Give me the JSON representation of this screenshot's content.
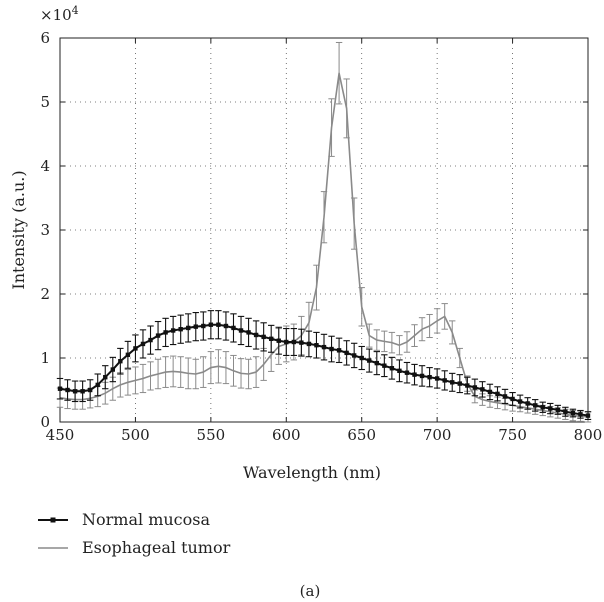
{
  "chart_data": {
    "type": "line",
    "title": "",
    "xlabel": "Wavelength (nm)",
    "ylabel": "Intensity (a.u.)",
    "y_multiplier": "×10",
    "y_multiplier_exp": "4",
    "xlim": [
      450,
      800
    ],
    "ylim": [
      0,
      6
    ],
    "xticks": [
      450,
      500,
      550,
      600,
      650,
      700,
      750,
      800
    ],
    "yticks": [
      0,
      1,
      2,
      3,
      4,
      5,
      6
    ],
    "grid": "dotted",
    "legend_position": "below",
    "caption": "(a)",
    "series": [
      {
        "name": "Normal mucosa",
        "color": "#111111",
        "marker": "square",
        "x": [
          450,
          455,
          460,
          465,
          470,
          475,
          480,
          485,
          490,
          495,
          500,
          505,
          510,
          515,
          520,
          525,
          530,
          535,
          540,
          545,
          550,
          555,
          560,
          565,
          570,
          575,
          580,
          585,
          590,
          595,
          600,
          605,
          610,
          615,
          620,
          625,
          630,
          635,
          640,
          645,
          650,
          655,
          660,
          665,
          670,
          675,
          680,
          685,
          690,
          695,
          700,
          705,
          710,
          715,
          720,
          725,
          730,
          735,
          740,
          745,
          750,
          755,
          760,
          765,
          770,
          775,
          780,
          785,
          790,
          795,
          800
        ],
        "values": [
          0.52,
          0.5,
          0.48,
          0.48,
          0.5,
          0.58,
          0.7,
          0.82,
          0.95,
          1.05,
          1.15,
          1.22,
          1.28,
          1.35,
          1.4,
          1.43,
          1.45,
          1.47,
          1.49,
          1.5,
          1.52,
          1.52,
          1.5,
          1.47,
          1.43,
          1.4,
          1.36,
          1.33,
          1.3,
          1.27,
          1.25,
          1.25,
          1.24,
          1.22,
          1.2,
          1.17,
          1.14,
          1.12,
          1.08,
          1.04,
          1.0,
          0.96,
          0.92,
          0.88,
          0.84,
          0.8,
          0.77,
          0.74,
          0.72,
          0.7,
          0.68,
          0.65,
          0.62,
          0.6,
          0.57,
          0.54,
          0.51,
          0.47,
          0.44,
          0.4,
          0.36,
          0.32,
          0.29,
          0.26,
          0.23,
          0.21,
          0.19,
          0.16,
          0.14,
          0.12,
          0.1
        ],
        "error": [
          0.16,
          0.16,
          0.16,
          0.16,
          0.16,
          0.17,
          0.18,
          0.19,
          0.2,
          0.21,
          0.21,
          0.22,
          0.22,
          0.22,
          0.22,
          0.22,
          0.22,
          0.22,
          0.22,
          0.22,
          0.22,
          0.22,
          0.22,
          0.22,
          0.22,
          0.22,
          0.22,
          0.22,
          0.21,
          0.21,
          0.21,
          0.21,
          0.21,
          0.2,
          0.2,
          0.2,
          0.2,
          0.19,
          0.19,
          0.19,
          0.18,
          0.18,
          0.18,
          0.17,
          0.17,
          0.17,
          0.16,
          0.16,
          0.16,
          0.15,
          0.15,
          0.15,
          0.14,
          0.14,
          0.13,
          0.13,
          0.12,
          0.12,
          0.11,
          0.11,
          0.1,
          0.1,
          0.09,
          0.09,
          0.08,
          0.08,
          0.07,
          0.07,
          0.06,
          0.06,
          0.06
        ]
      },
      {
        "name": "Esophageal tumor",
        "color": "#8a8a8a",
        "marker": "none",
        "x": [
          450,
          455,
          460,
          465,
          470,
          475,
          480,
          485,
          490,
          495,
          500,
          505,
          510,
          515,
          520,
          525,
          530,
          535,
          540,
          545,
          550,
          555,
          560,
          565,
          570,
          575,
          580,
          585,
          590,
          595,
          600,
          605,
          610,
          615,
          620,
          625,
          630,
          635,
          640,
          645,
          650,
          655,
          660,
          665,
          670,
          675,
          680,
          685,
          690,
          695,
          700,
          705,
          710,
          715,
          720,
          725,
          730,
          735,
          740,
          745,
          750,
          755,
          760,
          765,
          770,
          775,
          780,
          785,
          790,
          795,
          800
        ],
        "values": [
          0.38,
          0.36,
          0.35,
          0.35,
          0.37,
          0.4,
          0.45,
          0.52,
          0.58,
          0.62,
          0.65,
          0.68,
          0.72,
          0.75,
          0.78,
          0.79,
          0.78,
          0.76,
          0.75,
          0.78,
          0.85,
          0.87,
          0.85,
          0.8,
          0.76,
          0.75,
          0.78,
          0.9,
          1.05,
          1.18,
          1.22,
          1.25,
          1.35,
          1.55,
          2.1,
          3.2,
          4.6,
          5.45,
          4.9,
          3.1,
          1.8,
          1.35,
          1.28,
          1.26,
          1.24,
          1.2,
          1.25,
          1.35,
          1.45,
          1.5,
          1.58,
          1.65,
          1.4,
          1.0,
          0.6,
          0.4,
          0.35,
          0.32,
          0.3,
          0.28,
          0.26,
          0.24,
          0.22,
          0.2,
          0.18,
          0.16,
          0.14,
          0.12,
          0.1,
          0.09,
          0.08
        ],
        "error": [
          0.15,
          0.15,
          0.15,
          0.15,
          0.15,
          0.16,
          0.17,
          0.18,
          0.19,
          0.2,
          0.21,
          0.22,
          0.22,
          0.23,
          0.24,
          0.24,
          0.24,
          0.24,
          0.23,
          0.24,
          0.25,
          0.26,
          0.25,
          0.24,
          0.23,
          0.23,
          0.24,
          0.25,
          0.26,
          0.28,
          0.28,
          0.28,
          0.3,
          0.32,
          0.35,
          0.4,
          0.45,
          0.48,
          0.46,
          0.4,
          0.3,
          0.18,
          0.16,
          0.16,
          0.16,
          0.15,
          0.16,
          0.17,
          0.18,
          0.18,
          0.19,
          0.2,
          0.18,
          0.15,
          0.12,
          0.1,
          0.09,
          0.09,
          0.09,
          0.09,
          0.09,
          0.08,
          0.08,
          0.08,
          0.08,
          0.08,
          0.08,
          0.08,
          0.08,
          0.08,
          0.08
        ]
      }
    ]
  }
}
